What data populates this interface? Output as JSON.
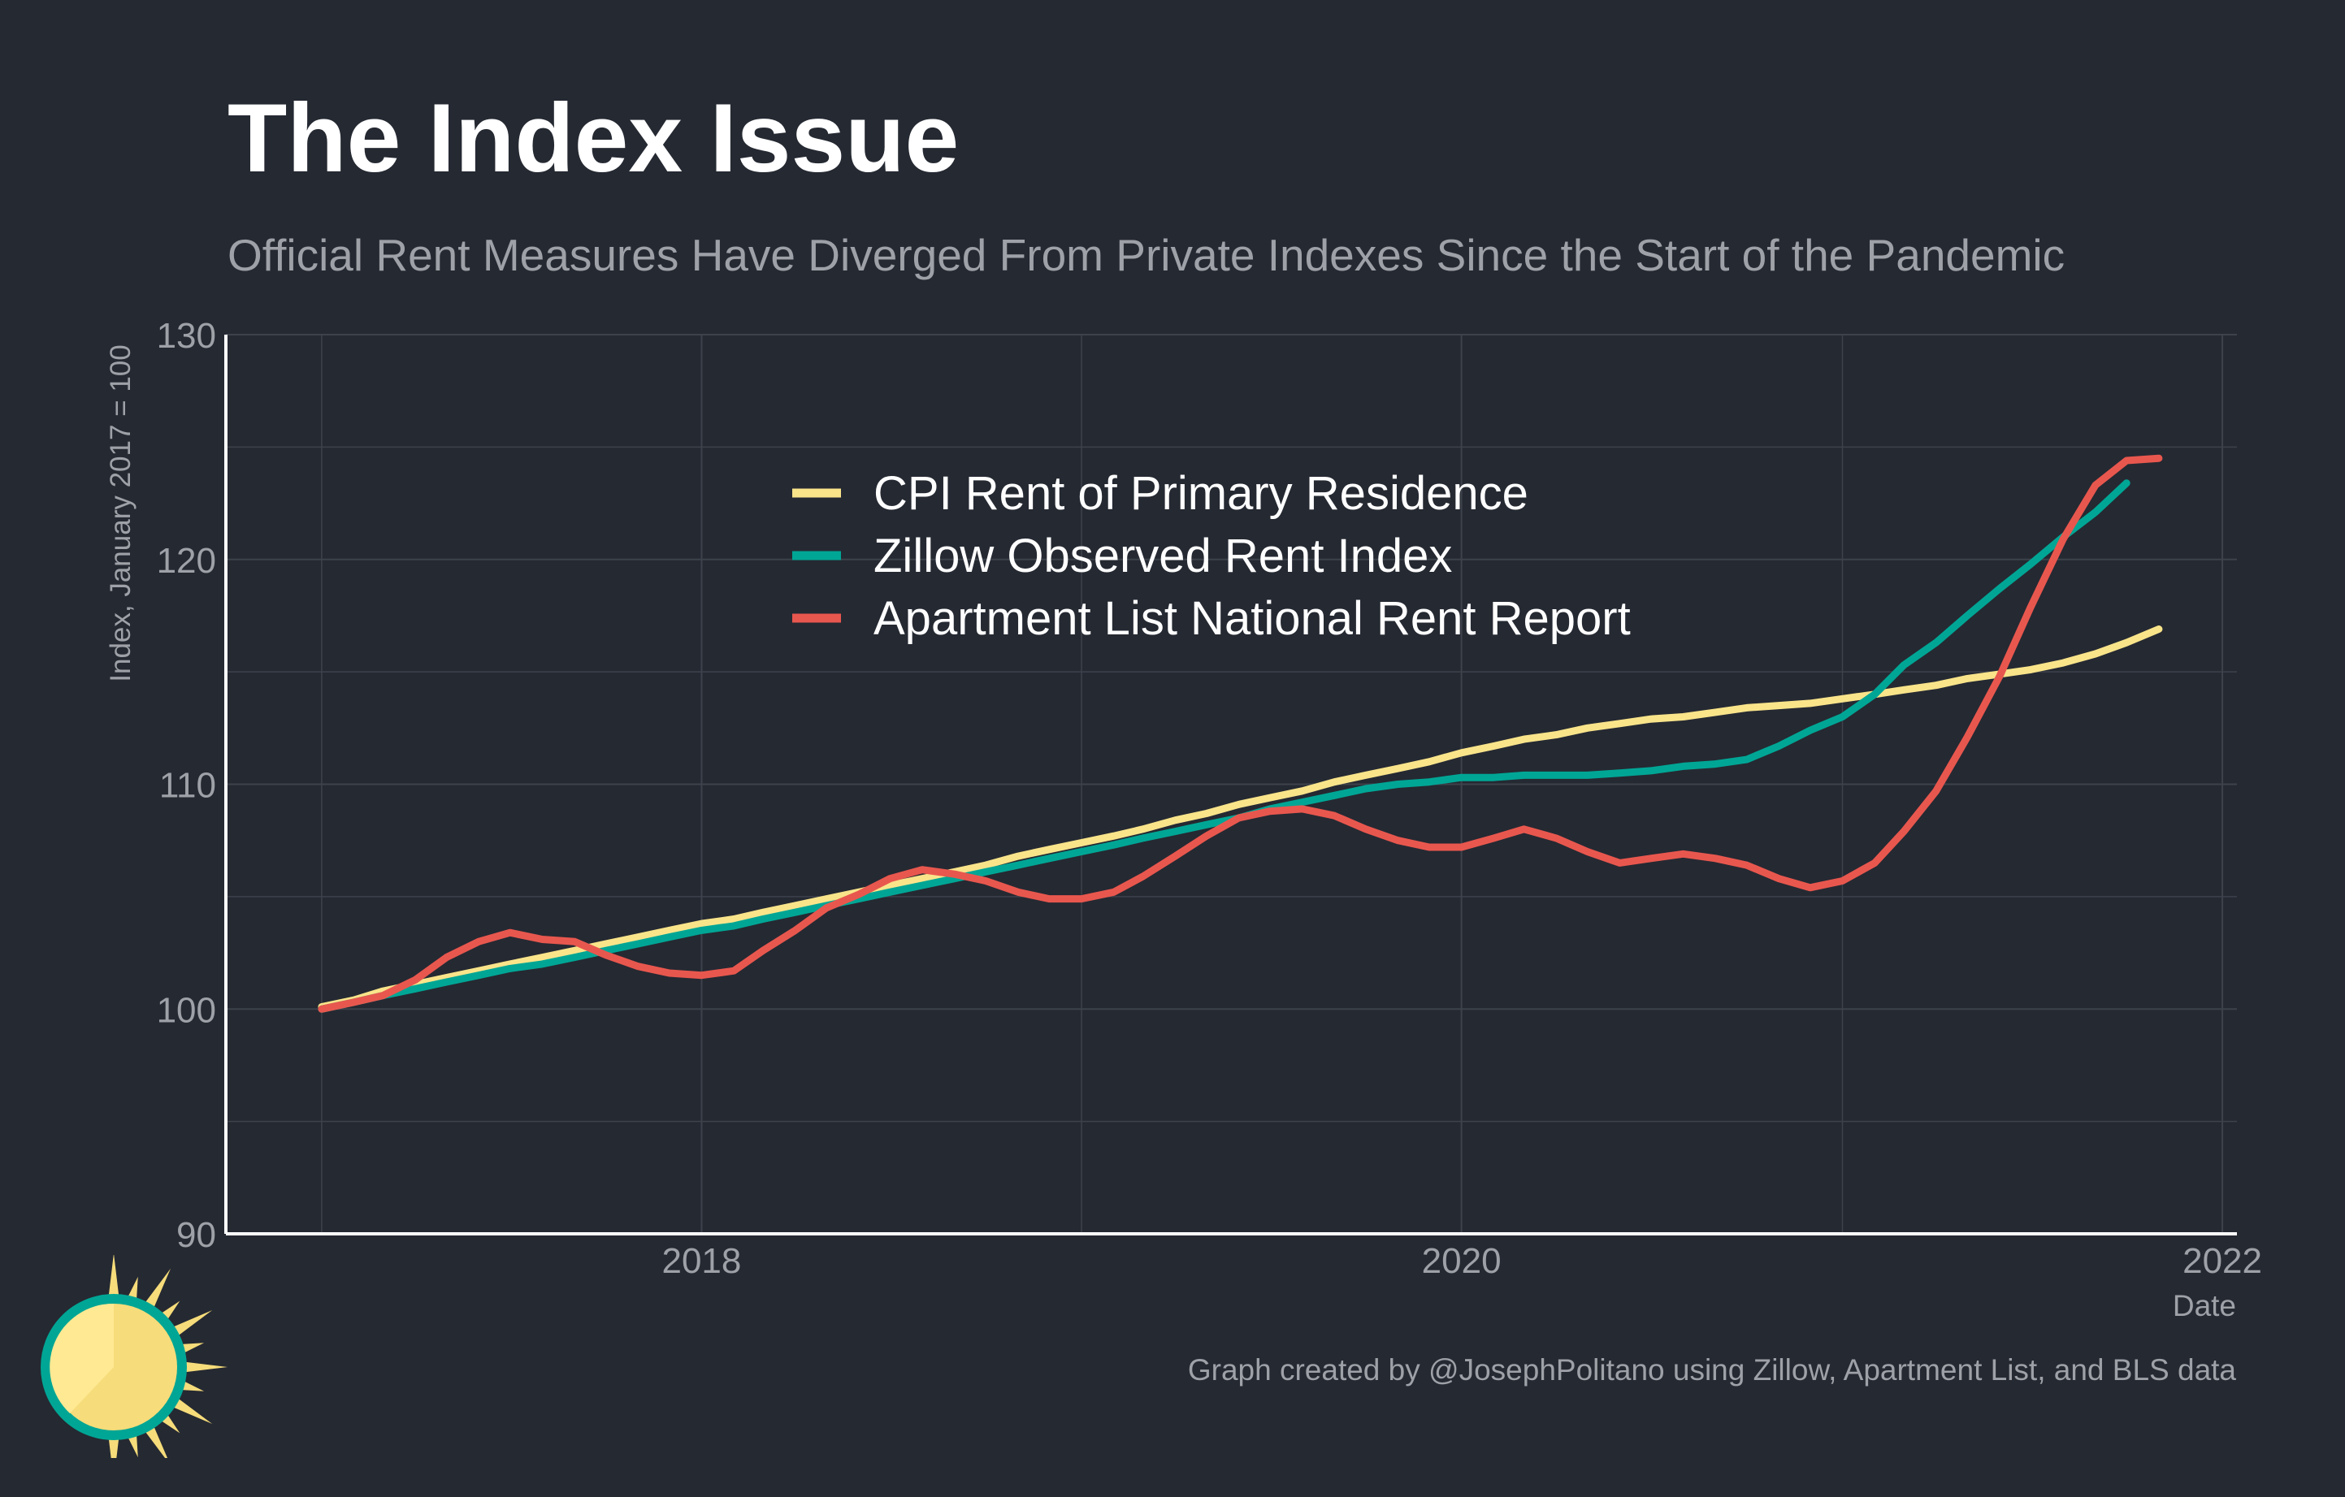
{
  "header": {
    "title": "The Index Issue",
    "subtitle": "Official Rent Measures Have Diverged From Private Indexes Since the Start of the Pandemic"
  },
  "caption": "Graph created by @JosephPolitano using Zillow, Apartment List, and BLS data",
  "colors": {
    "background": "#252932",
    "grid": "#3d424b",
    "axis": "#ffffff",
    "tick_text": "#9ea1a7",
    "cpi": "#f9e48a",
    "zillow": "#00a695",
    "apartment_list": "#e8574e"
  },
  "chart_data": {
    "type": "line",
    "title": "The Index Issue",
    "subtitle": "Official Rent Measures Have Diverged From Private Indexes Since the Start of the Pandemic",
    "xlabel": "Date",
    "ylabel": "Index, January 2017 = 100",
    "xlim": [
      "2016-10-01",
      "2022-01-15"
    ],
    "ylim": [
      90,
      130
    ],
    "x_ticks": [
      "2018",
      "2020",
      "2022"
    ],
    "y_ticks": [
      90,
      100,
      110,
      120,
      130
    ],
    "grid": true,
    "legend_position": "top-center",
    "series": [
      {
        "name": "CPI Rent of Primary Residence",
        "color": "#f9e48a",
        "x": [
          "2017-01",
          "2017-02",
          "2017-03",
          "2017-04",
          "2017-05",
          "2017-06",
          "2017-07",
          "2017-08",
          "2017-09",
          "2017-10",
          "2017-11",
          "2017-12",
          "2018-01",
          "2018-02",
          "2018-03",
          "2018-04",
          "2018-05",
          "2018-06",
          "2018-07",
          "2018-08",
          "2018-09",
          "2018-10",
          "2018-11",
          "2018-12",
          "2019-01",
          "2019-02",
          "2019-03",
          "2019-04",
          "2019-05",
          "2019-06",
          "2019-07",
          "2019-08",
          "2019-09",
          "2019-10",
          "2019-11",
          "2019-12",
          "2020-01",
          "2020-02",
          "2020-03",
          "2020-04",
          "2020-05",
          "2020-06",
          "2020-07",
          "2020-08",
          "2020-09",
          "2020-10",
          "2020-11",
          "2020-12",
          "2021-01",
          "2021-02",
          "2021-03",
          "2021-04",
          "2021-05",
          "2021-06",
          "2021-07",
          "2021-08",
          "2021-09",
          "2021-10",
          "2021-11"
        ],
        "values": [
          100.1,
          100.4,
          100.8,
          101.1,
          101.4,
          101.7,
          102.0,
          102.3,
          102.6,
          102.9,
          103.2,
          103.5,
          103.8,
          104.0,
          104.3,
          104.6,
          104.9,
          105.2,
          105.5,
          105.8,
          106.1,
          106.4,
          106.8,
          107.1,
          107.4,
          107.7,
          108.0,
          108.4,
          108.7,
          109.1,
          109.4,
          109.7,
          110.1,
          110.4,
          110.7,
          111.0,
          111.4,
          111.7,
          112.0,
          112.2,
          112.5,
          112.7,
          112.9,
          113.0,
          113.2,
          113.4,
          113.5,
          113.6,
          113.8,
          114.0,
          114.2,
          114.4,
          114.7,
          114.9,
          115.1,
          115.4,
          115.8,
          116.3,
          116.9
        ]
      },
      {
        "name": "Zillow Observed Rent Index",
        "color": "#00a695",
        "x": [
          "2017-01",
          "2017-02",
          "2017-03",
          "2017-04",
          "2017-05",
          "2017-06",
          "2017-07",
          "2017-08",
          "2017-09",
          "2017-10",
          "2017-11",
          "2017-12",
          "2018-01",
          "2018-02",
          "2018-03",
          "2018-04",
          "2018-05",
          "2018-06",
          "2018-07",
          "2018-08",
          "2018-09",
          "2018-10",
          "2018-11",
          "2018-12",
          "2019-01",
          "2019-02",
          "2019-03",
          "2019-04",
          "2019-05",
          "2019-06",
          "2019-07",
          "2019-08",
          "2019-09",
          "2019-10",
          "2019-11",
          "2019-12",
          "2020-01",
          "2020-02",
          "2020-03",
          "2020-04",
          "2020-05",
          "2020-06",
          "2020-07",
          "2020-08",
          "2020-09",
          "2020-10",
          "2020-11",
          "2020-12",
          "2021-01",
          "2021-02",
          "2021-03",
          "2021-04",
          "2021-05",
          "2021-06",
          "2021-07",
          "2021-08",
          "2021-09",
          "2021-10"
        ],
        "values": [
          100.0,
          100.3,
          100.6,
          100.9,
          101.2,
          101.5,
          101.8,
          102.0,
          102.3,
          102.6,
          102.9,
          103.2,
          103.5,
          103.7,
          104.0,
          104.3,
          104.6,
          104.9,
          105.2,
          105.5,
          105.8,
          106.1,
          106.4,
          106.7,
          107.0,
          107.3,
          107.6,
          107.9,
          108.2,
          108.5,
          108.9,
          109.2,
          109.5,
          109.8,
          110.0,
          110.1,
          110.3,
          110.3,
          110.4,
          110.4,
          110.4,
          110.5,
          110.6,
          110.8,
          110.9,
          111.1,
          111.7,
          112.4,
          113.0,
          114.0,
          115.3,
          116.3,
          117.5,
          118.7,
          119.8,
          121.0,
          122.1,
          123.4
        ]
      },
      {
        "name": "Apartment List National Rent Report",
        "color": "#e8574e",
        "x": [
          "2017-01",
          "2017-02",
          "2017-03",
          "2017-04",
          "2017-05",
          "2017-06",
          "2017-07",
          "2017-08",
          "2017-09",
          "2017-10",
          "2017-11",
          "2017-12",
          "2018-01",
          "2018-02",
          "2018-03",
          "2018-04",
          "2018-05",
          "2018-06",
          "2018-07",
          "2018-08",
          "2018-09",
          "2018-10",
          "2018-11",
          "2018-12",
          "2019-01",
          "2019-02",
          "2019-03",
          "2019-04",
          "2019-05",
          "2019-06",
          "2019-07",
          "2019-08",
          "2019-09",
          "2019-10",
          "2019-11",
          "2019-12",
          "2020-01",
          "2020-02",
          "2020-03",
          "2020-04",
          "2020-05",
          "2020-06",
          "2020-07",
          "2020-08",
          "2020-09",
          "2020-10",
          "2020-11",
          "2020-12",
          "2021-01",
          "2021-02",
          "2021-03",
          "2021-04",
          "2021-05",
          "2021-06",
          "2021-07",
          "2021-08",
          "2021-09",
          "2021-10",
          "2021-11"
        ],
        "values": [
          100.0,
          100.3,
          100.6,
          101.3,
          102.3,
          103.0,
          103.4,
          103.1,
          103.0,
          102.4,
          101.9,
          101.6,
          101.5,
          101.7,
          102.6,
          103.5,
          104.5,
          105.1,
          105.8,
          106.2,
          106.0,
          105.7,
          105.2,
          104.9,
          104.9,
          105.2,
          105.9,
          106.8,
          107.7,
          108.5,
          108.8,
          108.9,
          108.6,
          108.0,
          107.5,
          107.2,
          107.2,
          107.6,
          108.0,
          107.6,
          107.0,
          106.5,
          106.7,
          106.9,
          106.7,
          106.4,
          105.8,
          105.4,
          105.7,
          106.5,
          107.9,
          109.7,
          112.1,
          114.8,
          117.9,
          120.9,
          123.3,
          124.4,
          124.5
        ]
      }
    ]
  }
}
